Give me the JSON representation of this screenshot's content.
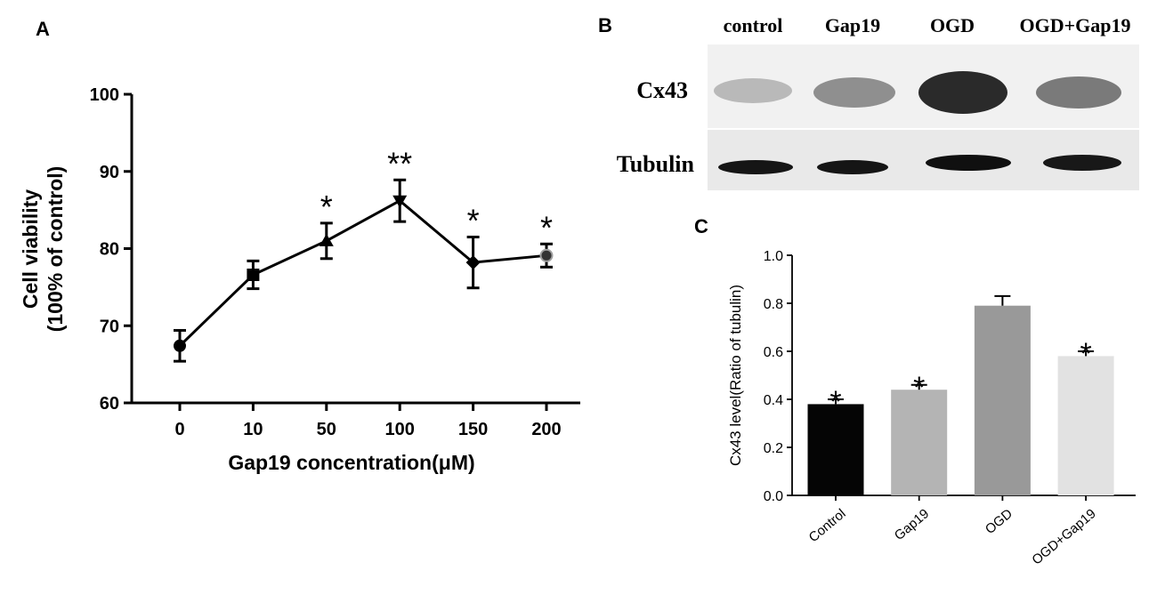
{
  "panels": {
    "a": {
      "letter": "A"
    },
    "b": {
      "letter": "B",
      "lanes": [
        "control",
        "Gap19",
        "OGD",
        "OGD+Gap19"
      ],
      "rows": [
        "Cx43",
        "Tubulin"
      ]
    },
    "c": {
      "letter": "C"
    }
  },
  "chart_data": [
    {
      "type": "line",
      "panel": "A",
      "title": "",
      "xlabel": "Gap19 concentration(μM)",
      "ylabel": [
        "Cell viability",
        "(100% of control)"
      ],
      "categories": [
        "0",
        "10",
        "50",
        "100",
        "150",
        "200"
      ],
      "values": [
        67.4,
        76.6,
        81.0,
        86.2,
        78.2,
        79.1
      ],
      "errors": [
        2.0,
        1.8,
        2.3,
        2.7,
        3.3,
        1.5
      ],
      "markers": [
        "circle",
        "square",
        "triangle-up",
        "triangle-down",
        "diamond",
        "circle-gray"
      ],
      "significance": [
        "",
        "",
        "*",
        "**",
        "*",
        "*"
      ],
      "ylim": [
        60,
        100
      ],
      "yticks": [
        60,
        70,
        80,
        90,
        100
      ],
      "grid": false
    },
    {
      "type": "bar",
      "panel": "C",
      "title": "",
      "xlabel": "",
      "ylabel": "Cx43 level(Ratio of tubulin)",
      "categories": [
        "Control",
        "Gap19",
        "OGD",
        "OGD+Gap19"
      ],
      "values": [
        0.38,
        0.44,
        0.79,
        0.58
      ],
      "errors": [
        0.02,
        0.02,
        0.04,
        0.02
      ],
      "colors": [
        "#050505",
        "#b4b4b4",
        "#999999",
        "#e2e2e2"
      ],
      "significance": [
        "*",
        "*",
        "",
        "*"
      ],
      "ylim": [
        0,
        1.0
      ],
      "yticks": [
        "0.0",
        "0.2",
        "0.4",
        "0.6",
        "0.8",
        "1.0"
      ],
      "grid": false
    }
  ]
}
